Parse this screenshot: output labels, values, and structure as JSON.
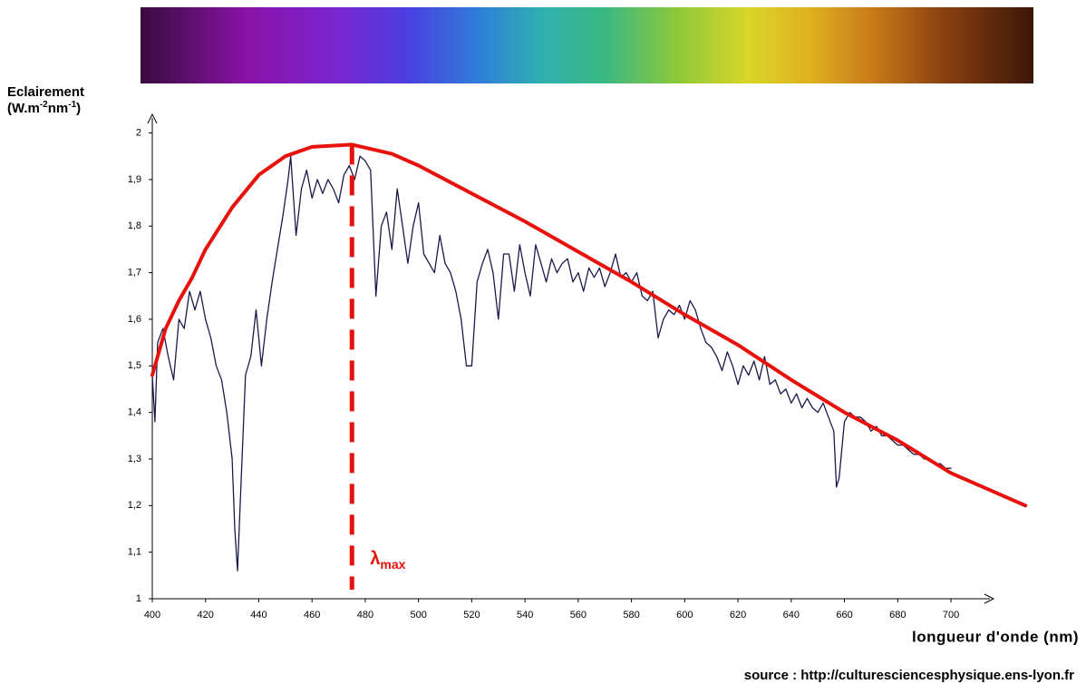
{
  "chart_data": {
    "type": "line",
    "ylabel": [
      "Eclairement",
      "(W.m",
      "-2",
      "nm",
      "-1",
      ")"
    ],
    "xlabel": "longueur d'onde (nm)",
    "source": "source : http://culturesciencesphysique.ens-lyon.fr",
    "xlim": [
      400,
      716
    ],
    "ylim": [
      1,
      2.04
    ],
    "xticks": [
      400,
      420,
      440,
      460,
      480,
      500,
      520,
      540,
      560,
      580,
      600,
      620,
      640,
      660,
      680,
      700
    ],
    "yticks": [
      1,
      {
        "value": 1.1,
        "label": "1,1"
      },
      {
        "value": 1.2,
        "label": "1,2"
      },
      {
        "value": 1.3,
        "label": "1,3"
      },
      {
        "value": 1.4,
        "label": "1,4"
      },
      {
        "value": 1.5,
        "label": "1,5"
      },
      {
        "value": 1.6,
        "label": "1,6"
      },
      {
        "value": 1.7,
        "label": "1,7"
      },
      {
        "value": 1.8,
        "label": "1,8"
      },
      {
        "value": 1.9,
        "label": "1,9"
      },
      2
    ],
    "series": [
      {
        "color": "#1a1a4a",
        "width": 1.3,
        "x": [
          400,
          401,
          402,
          404,
          406,
          408,
          410,
          412,
          414,
          416,
          418,
          420,
          422,
          424,
          426,
          428,
          430,
          431,
          432,
          433,
          435,
          437,
          439,
          441,
          443,
          445,
          447,
          449,
          451,
          452,
          454,
          456,
          458,
          460,
          462,
          464,
          466,
          468,
          470,
          472,
          474,
          476,
          478,
          480,
          482,
          484,
          486,
          488,
          490,
          492,
          494,
          496,
          498,
          500,
          502,
          504,
          506,
          508,
          510,
          512,
          514,
          516,
          518,
          520,
          522,
          524,
          526,
          528,
          530,
          532,
          534,
          536,
          538,
          540,
          542,
          544,
          546,
          548,
          550,
          552,
          554,
          556,
          558,
          560,
          562,
          564,
          566,
          568,
          570,
          572,
          574,
          576,
          578,
          580,
          582,
          584,
          586,
          588,
          590,
          592,
          594,
          596,
          598,
          600,
          602,
          604,
          606,
          608,
          610,
          612,
          614,
          616,
          618,
          620,
          622,
          624,
          626,
          628,
          630,
          632,
          634,
          636,
          638,
          640,
          642,
          644,
          646,
          648,
          650,
          652,
          654,
          656,
          657,
          658,
          660,
          662,
          664,
          666,
          668,
          670,
          672,
          674,
          676,
          678,
          680,
          682,
          684,
          686,
          688,
          690,
          692,
          694,
          696,
          698,
          700
        ],
        "values": [
          1.48,
          1.38,
          1.55,
          1.58,
          1.52,
          1.47,
          1.6,
          1.58,
          1.66,
          1.62,
          1.66,
          1.6,
          1.56,
          1.5,
          1.47,
          1.4,
          1.3,
          1.15,
          1.06,
          1.2,
          1.48,
          1.52,
          1.62,
          1.5,
          1.6,
          1.68,
          1.75,
          1.82,
          1.9,
          1.95,
          1.78,
          1.88,
          1.92,
          1.86,
          1.9,
          1.87,
          1.9,
          1.88,
          1.85,
          1.91,
          1.93,
          1.9,
          1.95,
          1.94,
          1.92,
          1.65,
          1.8,
          1.83,
          1.75,
          1.88,
          1.8,
          1.72,
          1.8,
          1.85,
          1.74,
          1.72,
          1.7,
          1.78,
          1.72,
          1.7,
          1.66,
          1.6,
          1.5,
          1.5,
          1.68,
          1.72,
          1.75,
          1.7,
          1.6,
          1.74,
          1.74,
          1.66,
          1.76,
          1.7,
          1.65,
          1.76,
          1.72,
          1.68,
          1.73,
          1.7,
          1.72,
          1.73,
          1.68,
          1.7,
          1.66,
          1.71,
          1.69,
          1.71,
          1.67,
          1.7,
          1.74,
          1.69,
          1.7,
          1.68,
          1.7,
          1.65,
          1.64,
          1.66,
          1.56,
          1.6,
          1.62,
          1.61,
          1.63,
          1.6,
          1.64,
          1.62,
          1.58,
          1.55,
          1.54,
          1.52,
          1.49,
          1.53,
          1.5,
          1.46,
          1.5,
          1.48,
          1.51,
          1.47,
          1.52,
          1.46,
          1.47,
          1.44,
          1.45,
          1.42,
          1.44,
          1.41,
          1.43,
          1.41,
          1.4,
          1.42,
          1.39,
          1.36,
          1.24,
          1.26,
          1.38,
          1.4,
          1.39,
          1.39,
          1.38,
          1.36,
          1.37,
          1.35,
          1.35,
          1.34,
          1.33,
          1.33,
          1.32,
          1.31,
          1.31,
          1.3,
          1.3,
          1.29,
          1.29,
          1.28,
          1.28
        ]
      },
      {
        "color": "#e8120c",
        "width": 4,
        "x": [
          400,
          405,
          410,
          415,
          420,
          430,
          440,
          450,
          460,
          475,
          490,
          500,
          520,
          540,
          560,
          580,
          600,
          620,
          640,
          660,
          680,
          700,
          728
        ],
        "values": [
          1.48,
          1.58,
          1.64,
          1.69,
          1.75,
          1.84,
          1.91,
          1.95,
          1.97,
          1.975,
          1.955,
          1.93,
          1.87,
          1.81,
          1.745,
          1.68,
          1.61,
          1.545,
          1.47,
          1.4,
          1.34,
          1.27,
          1.2
        ]
      }
    ],
    "vline": {
      "x": 475,
      "top": 1.975,
      "color": "#e8120c",
      "label": "λ",
      "label_sub": "max"
    }
  }
}
